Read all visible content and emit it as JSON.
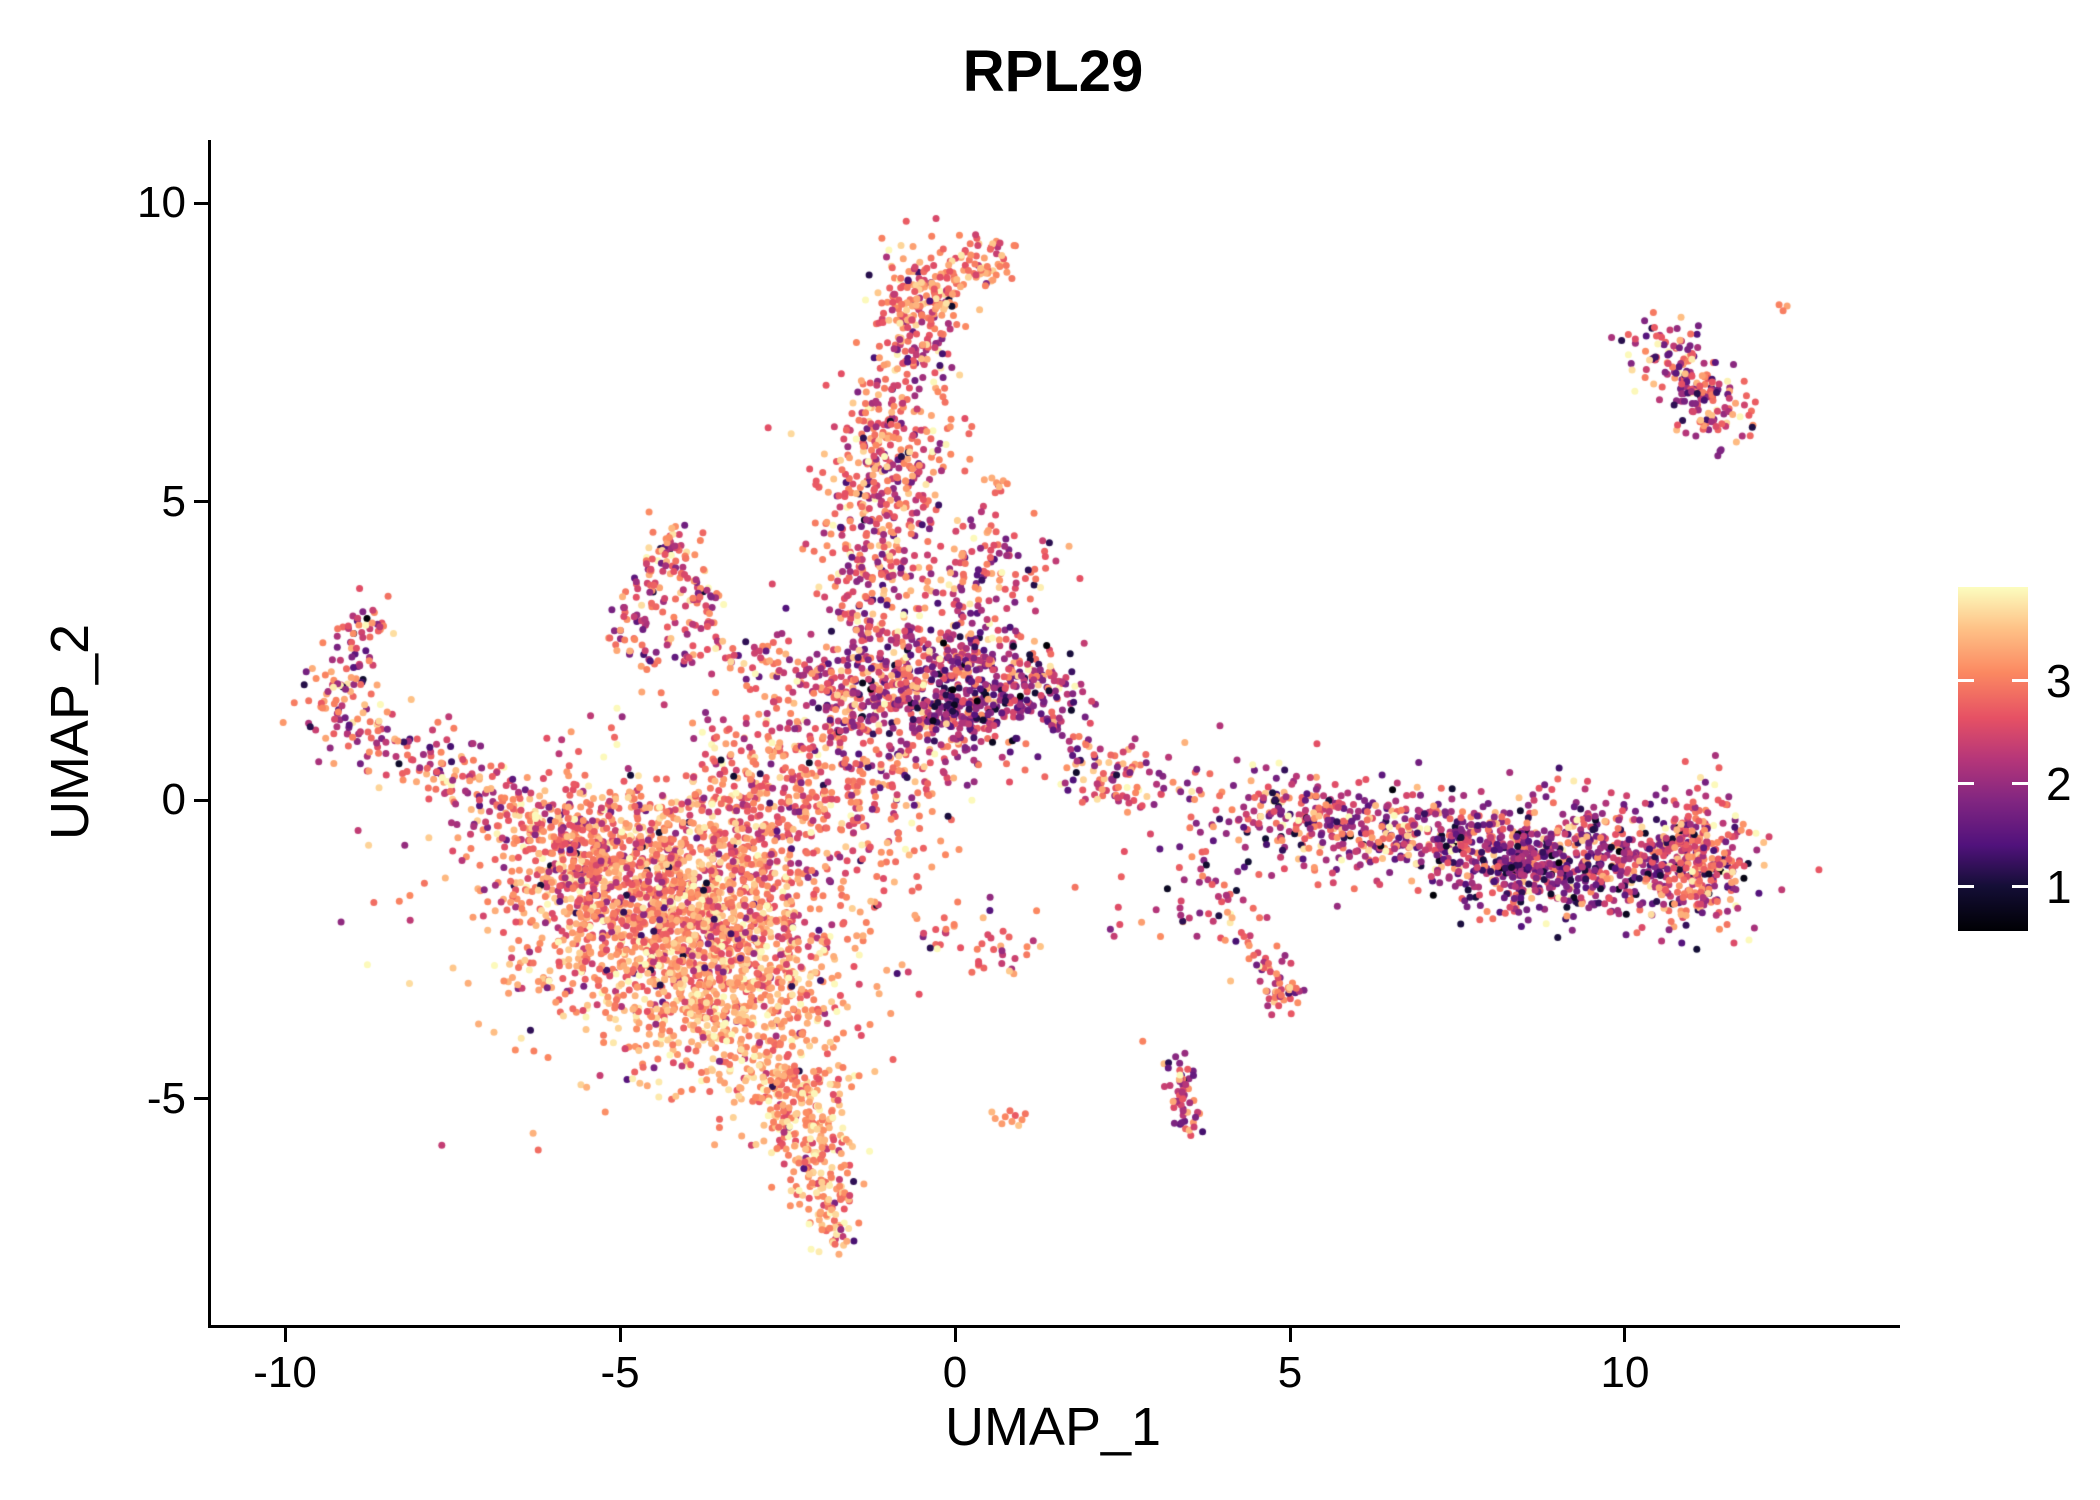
{
  "title": "RPL29",
  "chart_data": {
    "type": "scatter",
    "title": "RPL29",
    "xlabel": "UMAP_1",
    "ylabel": "UMAP_2",
    "x_tick_labels": [
      "-10",
      "-5",
      "0",
      "5",
      "10"
    ],
    "x_tick_values": [
      -10,
      -5,
      0,
      5,
      10
    ],
    "y_tick_labels": [
      "10",
      "5",
      "0",
      "-5"
    ],
    "y_tick_values": [
      10,
      5,
      0,
      -5
    ],
    "xlim": [
      -11.12,
      14.06
    ],
    "ylim": [
      -8.79,
      11.06
    ],
    "grid": false,
    "background": "#ffffff",
    "point_radius_px": 3.5,
    "seed": 1337,
    "legend": {
      "position": "right",
      "tick_labels": [
        "3",
        "2",
        "1"
      ],
      "tick_values": [
        3,
        2,
        1
      ],
      "value_range": [
        0.57,
        3.91
      ]
    },
    "colormap": {
      "name": "magma",
      "stops": [
        [
          0.0,
          "#000004"
        ],
        [
          0.13,
          "#140E36"
        ],
        [
          0.25,
          "#51127C"
        ],
        [
          0.38,
          "#822681"
        ],
        [
          0.5,
          "#B63679"
        ],
        [
          0.62,
          "#E65164"
        ],
        [
          0.75,
          "#FB8861"
        ],
        [
          0.88,
          "#FEC287"
        ],
        [
          1.0,
          "#FCFDBF"
        ]
      ]
    },
    "clusters": [
      {
        "type": "gauss",
        "cx": -4.2,
        "cy": -1.7,
        "sx": 1.15,
        "sy": 0.95,
        "n": 1300,
        "e": 3.1,
        "es": 0.45,
        "df": 0.03
      },
      {
        "type": "gauss",
        "cx": -3.4,
        "cy": -3.2,
        "sx": 0.85,
        "sy": 0.85,
        "n": 650,
        "e": 3.25,
        "es": 0.4,
        "df": 0.02
      },
      {
        "type": "gauss",
        "cx": -5.4,
        "cy": -1.0,
        "sx": 0.8,
        "sy": 0.6,
        "n": 300,
        "e": 2.9,
        "es": 0.5,
        "df": 0.04
      },
      {
        "type": "gauss",
        "cx": -3.9,
        "cy": -1.6,
        "sx": 1.9,
        "sy": 1.5,
        "n": 280,
        "e": 2.8,
        "es": 0.55,
        "df": 0.05
      },
      {
        "type": "gauss",
        "cx": -2.6,
        "cy": -0.2,
        "sx": 0.7,
        "sy": 0.7,
        "n": 200,
        "e": 2.9,
        "es": 0.5,
        "df": 0.05
      },
      {
        "type": "line",
        "x1": -2.7,
        "y1": -4.3,
        "x2": -2.0,
        "y2": -6.0,
        "j": 0.33,
        "n": 150,
        "e": 3.2,
        "es": 0.4,
        "df": 0.02
      },
      {
        "type": "line",
        "x1": -2.1,
        "y1": -5.8,
        "x2": -1.85,
        "y2": -7.4,
        "j": 0.25,
        "n": 130,
        "e": 3.2,
        "es": 0.45,
        "df": 0.03
      },
      {
        "type": "gauss",
        "cx": -2.4,
        "cy": -4.9,
        "sx": 0.45,
        "sy": 0.5,
        "n": 90,
        "e": 3.3,
        "es": 0.4,
        "df": 0.02
      },
      {
        "type": "line",
        "x1": -9.35,
        "y1": 1.45,
        "x2": -6.4,
        "y2": -0.3,
        "j": 0.3,
        "n": 190,
        "e": 2.7,
        "es": 0.6,
        "df": 0.08
      },
      {
        "type": "line",
        "x1": -9.3,
        "y1": 1.7,
        "x2": -8.65,
        "y2": 3.15,
        "j": 0.22,
        "n": 80,
        "e": 2.6,
        "es": 0.7,
        "df": 0.1
      },
      {
        "type": "line",
        "x1": -6.5,
        "y1": -0.3,
        "x2": -5.3,
        "y2": -0.7,
        "j": 0.3,
        "n": 70,
        "e": 2.9,
        "es": 0.5,
        "df": 0.05
      },
      {
        "type": "line",
        "x1": -5.0,
        "y1": 2.6,
        "x2": -4.25,
        "y2": 4.4,
        "j": 0.16,
        "n": 65,
        "e": 2.8,
        "es": 0.55,
        "df": 0.08
      },
      {
        "type": "line",
        "x1": -4.25,
        "y1": 4.4,
        "x2": -3.55,
        "y2": 2.95,
        "j": 0.16,
        "n": 55,
        "e": 2.7,
        "es": 0.6,
        "df": 0.08
      },
      {
        "type": "line",
        "x1": -4.95,
        "y1": 2.55,
        "x2": -2.5,
        "y2": 2.3,
        "j": 0.16,
        "n": 65,
        "e": 2.7,
        "es": 0.6,
        "df": 0.08
      },
      {
        "type": "line",
        "x1": -2.5,
        "y1": 2.3,
        "x2": -1.7,
        "y2": 1.7,
        "j": 0.2,
        "n": 28,
        "e": 2.7,
        "es": 0.6,
        "df": 0.08
      },
      {
        "type": "gauss",
        "cx": -4.2,
        "cy": 3.4,
        "sx": 0.35,
        "sy": 0.4,
        "n": 30,
        "e": 2.7,
        "es": 0.6,
        "df": 0.08
      },
      {
        "type": "gauss",
        "cx": -2.1,
        "cy": 0.9,
        "sx": 0.85,
        "sy": 0.75,
        "n": 190,
        "e": 2.9,
        "es": 0.5,
        "df": 0.05
      },
      {
        "type": "gauss",
        "cx": -1.1,
        "cy": -0.6,
        "sx": 0.6,
        "sy": 0.9,
        "n": 60,
        "e": 2.9,
        "es": 0.5,
        "df": 0.05
      },
      {
        "type": "gauss",
        "cx": -0.85,
        "cy": 1.95,
        "sx": 0.8,
        "sy": 0.75,
        "n": 520,
        "e": 2.6,
        "es": 0.7,
        "df": 0.1
      },
      {
        "type": "gauss",
        "cx": 0.55,
        "cy": 1.9,
        "sx": 0.55,
        "sy": 0.5,
        "n": 240,
        "e": 2.3,
        "es": 0.75,
        "df": 0.14
      },
      {
        "type": "gauss",
        "cx": 0.1,
        "cy": 1.45,
        "sx": 0.35,
        "sy": 0.3,
        "n": 90,
        "e": 1.9,
        "es": 0.6,
        "df": 0.18
      },
      {
        "type": "gauss",
        "cx": 1.35,
        "cy": 1.8,
        "sx": 0.3,
        "sy": 0.35,
        "n": 50,
        "e": 2.2,
        "es": 0.7,
        "df": 0.15
      },
      {
        "type": "line",
        "x1": -1.4,
        "y1": 3.1,
        "x2": -1.0,
        "y2": 5.3,
        "j": 0.42,
        "n": 240,
        "e": 2.75,
        "es": 0.6,
        "df": 0.07
      },
      {
        "type": "gauss",
        "cx": -1.0,
        "cy": 5.9,
        "sx": 0.5,
        "sy": 0.65,
        "n": 210,
        "e": 2.9,
        "es": 0.55,
        "df": 0.06
      },
      {
        "type": "line",
        "x1": -0.8,
        "y1": 6.9,
        "x2": -0.55,
        "y2": 8.1,
        "j": 0.3,
        "n": 110,
        "e": 2.8,
        "es": 0.6,
        "df": 0.07
      },
      {
        "type": "gauss",
        "cx": -0.5,
        "cy": 8.5,
        "sx": 0.38,
        "sy": 0.38,
        "n": 160,
        "e": 3.0,
        "es": 0.5,
        "df": 0.05
      },
      {
        "type": "gauss",
        "cx": 0.45,
        "cy": 9.0,
        "sx": 0.28,
        "sy": 0.22,
        "n": 55,
        "e": 3.0,
        "es": 0.5,
        "df": 0.06
      },
      {
        "type": "gauss",
        "cx": 0.5,
        "cy": 4.0,
        "sx": 0.55,
        "sy": 0.5,
        "n": 110,
        "e": 2.7,
        "es": 0.6,
        "df": 0.08
      },
      {
        "type": "points",
        "pts": [
          [
            0.62,
            5.32
          ],
          [
            0.72,
            5.35
          ],
          [
            0.55,
            5.4
          ],
          [
            0.66,
            5.25
          ],
          [
            0.78,
            5.3
          ],
          [
            0.6,
            5.15
          ]
        ],
        "e": 3.4,
        "es": 0.25,
        "df": 0
      },
      {
        "type": "gauss",
        "cx": 0.4,
        "cy": -2.6,
        "sx": 0.75,
        "sy": 0.4,
        "n": 35,
        "e": 2.8,
        "es": 0.5,
        "df": 0.08
      },
      {
        "type": "points",
        "pts": [
          [
            0.75,
            -5.3
          ],
          [
            0.9,
            -5.28
          ],
          [
            0.6,
            -5.33
          ],
          [
            1.0,
            -5.35
          ],
          [
            0.82,
            -5.2
          ],
          [
            0.7,
            -5.42
          ],
          [
            0.95,
            -5.45
          ],
          [
            0.55,
            -5.22
          ],
          [
            1.05,
            -5.25
          ],
          [
            0.85,
            -5.38
          ]
        ],
        "e": 3.0,
        "es": 0.4,
        "df": 0.05
      },
      {
        "type": "line",
        "x1": 1.6,
        "y1": 0.7,
        "x2": 4.4,
        "y2": 0.1,
        "j": 0.35,
        "n": 60,
        "e": 2.7,
        "es": 0.6,
        "df": 0.08
      },
      {
        "type": "gauss",
        "cx": 2.3,
        "cy": 0.35,
        "sx": 0.35,
        "sy": 0.3,
        "n": 60,
        "e": 2.6,
        "es": 0.65,
        "df": 0.1
      },
      {
        "type": "line",
        "x1": 4.5,
        "y1": -0.15,
        "x2": 8.0,
        "y2": -0.85,
        "j": 0.42,
        "n": 480,
        "e": 2.5,
        "es": 0.75,
        "df": 0.13
      },
      {
        "type": "line",
        "x1": 8.0,
        "y1": -0.85,
        "x2": 11.3,
        "y2": -1.15,
        "j": 0.5,
        "n": 600,
        "e": 2.4,
        "es": 0.8,
        "df": 0.13
      },
      {
        "type": "gauss",
        "cx": 8.6,
        "cy": -1.05,
        "sx": 0.65,
        "sy": 0.38,
        "n": 170,
        "e": 1.8,
        "es": 0.5,
        "df": 0.2
      },
      {
        "type": "gauss",
        "cx": 11.15,
        "cy": -0.95,
        "sx": 0.35,
        "sy": 0.55,
        "n": 200,
        "e": 2.8,
        "es": 0.5,
        "df": 0.07
      },
      {
        "type": "points",
        "pts": [
          [
            10.9,
            0.65
          ],
          [
            11.35,
            0.75
          ],
          [
            11.2,
            0.3
          ],
          [
            10.6,
            0.2
          ],
          [
            11.45,
            -0.05
          ]
        ],
        "e": 2.5,
        "es": 0.6,
        "df": 0.1
      },
      {
        "type": "line",
        "x1": 3.6,
        "y1": -0.9,
        "x2": 4.85,
        "y2": -3.1,
        "j": 0.18,
        "n": 60,
        "e": 2.6,
        "es": 0.6,
        "df": 0.1
      },
      {
        "type": "gauss",
        "cx": 4.9,
        "cy": -3.25,
        "sx": 0.18,
        "sy": 0.15,
        "n": 35,
        "e": 2.7,
        "es": 0.6,
        "df": 0.1
      },
      {
        "type": "line",
        "x1": 3.35,
        "y1": -4.4,
        "x2": 3.55,
        "y2": -5.6,
        "j": 0.13,
        "n": 55,
        "e": 2.4,
        "es": 0.7,
        "df": 0.15
      },
      {
        "type": "gauss",
        "cx": 3.0,
        "cy": -1.8,
        "sx": 0.5,
        "sy": 0.6,
        "n": 20,
        "e": 2.6,
        "es": 0.6,
        "df": 0.1
      },
      {
        "type": "line",
        "x1": 10.45,
        "y1": 7.7,
        "x2": 11.6,
        "y2": 6.3,
        "j": 0.3,
        "n": 190,
        "e": 2.6,
        "es": 0.7,
        "df": 0.1
      },
      {
        "type": "points",
        "pts": [
          [
            9.8,
            7.75
          ],
          [
            9.95,
            7.7
          ],
          [
            10.05,
            7.8
          ]
        ],
        "e": 1.9,
        "es": 0.4,
        "df": 0.2
      },
      {
        "type": "points",
        "pts": [
          [
            12.3,
            8.3
          ],
          [
            12.42,
            8.28
          ],
          [
            12.36,
            8.2
          ]
        ],
        "e": 3.2,
        "es": 0.3,
        "df": 0
      },
      {
        "type": "points",
        "pts": [
          [
            11.9,
            6.25
          ],
          [
            11.75,
            6.1
          ],
          [
            11.85,
            6.45
          ]
        ],
        "e": 2.4,
        "es": 0.6,
        "df": 0.1
      }
    ]
  }
}
